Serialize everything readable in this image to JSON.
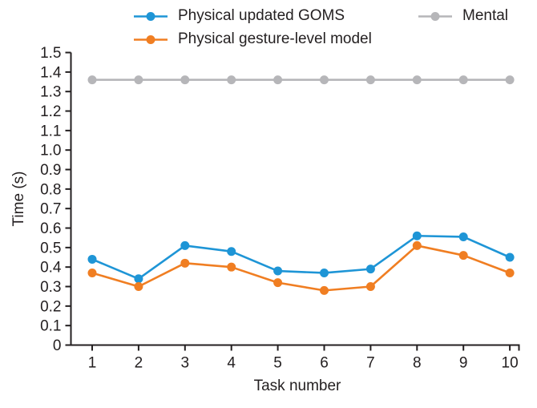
{
  "colors": {
    "blue": "#1E95D6",
    "orange": "#F07E22",
    "gray": "#B6B6B9",
    "axis": "#231F20"
  },
  "chart_data": {
    "type": "line",
    "x": [
      1,
      2,
      3,
      4,
      5,
      6,
      7,
      8,
      9,
      10
    ],
    "xlabel": "Task number",
    "ylabel": "Time (s)",
    "ylim": [
      0,
      1.5
    ],
    "ytick_step": 0.1,
    "ytick_labels": [
      "0",
      "0.1",
      "0.2",
      "0.3",
      "0.4",
      "0.5",
      "0.6",
      "0.7",
      "0.8",
      "0.9",
      "1.0",
      "1.1",
      "1.2",
      "1.3",
      "1.4",
      "1.5"
    ],
    "xtick_labels": [
      "1",
      "2",
      "3",
      "4",
      "5",
      "6",
      "7",
      "8",
      "9",
      "10"
    ],
    "grid": false,
    "legend_position": "top",
    "series": [
      {
        "name": "Physical updated GOMS",
        "color": "blue",
        "values": [
          0.44,
          0.34,
          0.51,
          0.48,
          0.38,
          0.37,
          0.39,
          0.56,
          0.555,
          0.45
        ]
      },
      {
        "name": "Physical gesture-level model",
        "color": "orange",
        "values": [
          0.37,
          0.3,
          0.42,
          0.4,
          0.32,
          0.28,
          0.3,
          0.51,
          0.46,
          0.37
        ]
      },
      {
        "name": "Mental",
        "color": "gray",
        "values": [
          1.36,
          1.36,
          1.36,
          1.36,
          1.36,
          1.36,
          1.36,
          1.36,
          1.36,
          1.36
        ]
      }
    ]
  }
}
